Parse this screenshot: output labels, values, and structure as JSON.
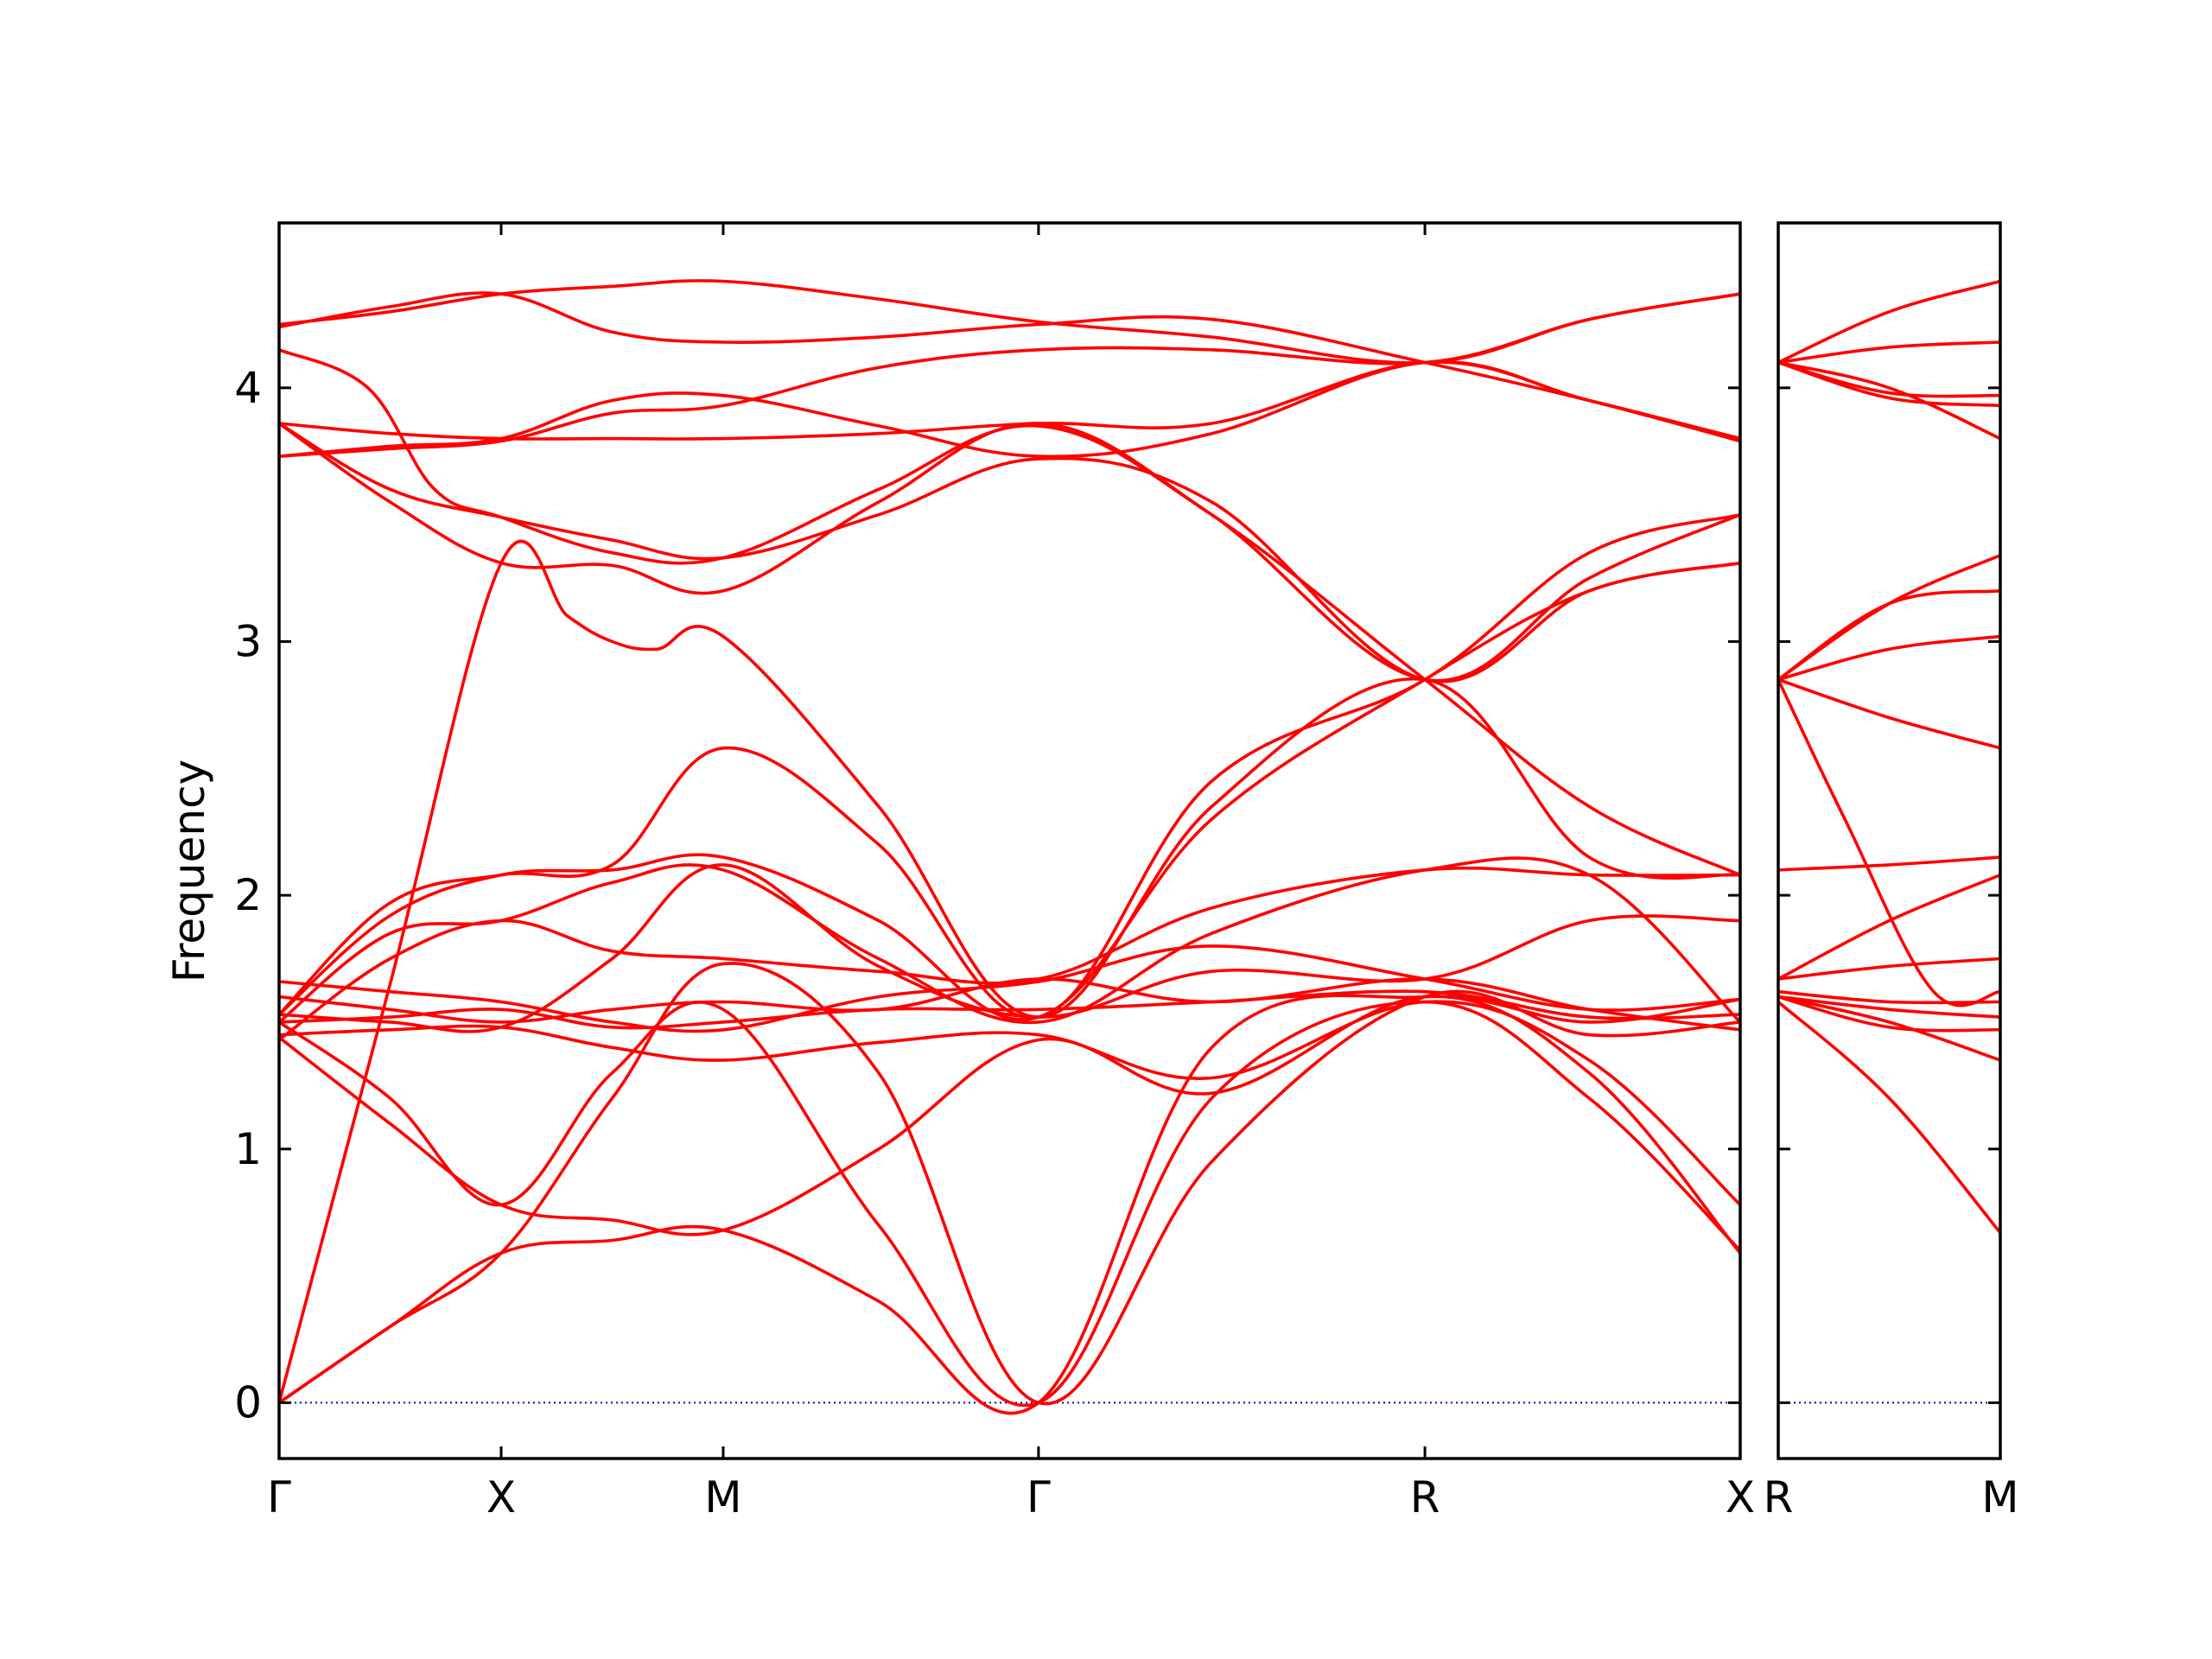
{
  "chart_data": {
    "type": "line",
    "ylabel": "Frequency",
    "ylim": [
      -0.22,
      4.65
    ],
    "yticks": [
      0,
      1,
      2,
      3,
      4
    ],
    "grid": false,
    "legend": "none",
    "line_color": "#ff0000",
    "zero_line_color": "#0000aa",
    "panels": [
      {
        "name": "main",
        "x_range": [
          0,
          3.29
        ],
        "ticks": [
          {
            "x": 0,
            "label": "Γ"
          },
          {
            "x": 0.5,
            "label": "X"
          },
          {
            "x": 1.0,
            "label": "M"
          },
          {
            "x": 1.71,
            "label": "Γ"
          },
          {
            "x": 2.58,
            "label": "R"
          },
          {
            "x": 3.29,
            "label": "X"
          }
        ],
        "series": [
          {
            "x": [
              0,
              0.25,
              0.5,
              0.75,
              1.0,
              1.35,
              1.71,
              2.1,
              2.58,
              2.95,
              3.29
            ],
            "y": [
              4.25,
              4.3,
              4.37,
              4.4,
              4.42,
              4.35,
              4.26,
              4.2,
              4.1,
              4.27,
              4.37
            ]
          },
          {
            "x": [
              0,
              0.25,
              0.5,
              0.75,
              1.0,
              1.35,
              1.71,
              2.1,
              2.58,
              2.95,
              3.29
            ],
            "y": [
              4.24,
              4.32,
              4.37,
              4.22,
              4.18,
              4.2,
              4.25,
              4.27,
              4.1,
              3.95,
              3.8
            ]
          },
          {
            "x": [
              0,
              0.2,
              0.35,
              0.5,
              0.75,
              1.0,
              1.35,
              1.71,
              2.1,
              2.58,
              2.95,
              3.29
            ],
            "y": [
              4.15,
              4.0,
              3.6,
              3.49,
              3.35,
              3.33,
              3.6,
              3.85,
              3.5,
              2.85,
              2.35,
              2.08
            ]
          },
          {
            "x": [
              0,
              0.25,
              0.5,
              0.75,
              1.0,
              1.35,
              1.71,
              2.1,
              2.58,
              2.95,
              3.29
            ],
            "y": [
              3.86,
              3.82,
              3.8,
              3.8,
              3.8,
              3.82,
              3.86,
              3.86,
              4.1,
              3.95,
              3.79
            ]
          },
          {
            "x": [
              0,
              0.25,
              0.5,
              0.75,
              1.0,
              1.35,
              1.71,
              2.1,
              2.58,
              2.95,
              3.29
            ],
            "y": [
              3.73,
              3.77,
              3.8,
              3.95,
              3.97,
              3.85,
              3.73,
              3.82,
              4.1,
              3.95,
              3.8
            ]
          },
          {
            "x": [
              0,
              0.25,
              0.5,
              0.75,
              1.0,
              1.35,
              1.71,
              2.1,
              2.58,
              2.95,
              3.29
            ],
            "y": [
              3.73,
              3.76,
              3.79,
              3.9,
              3.93,
              4.08,
              4.15,
              4.15,
              4.1,
              4.27,
              4.37
            ]
          },
          {
            "x": [
              0,
              0.25,
              0.5,
              0.75,
              1.0,
              1.35,
              1.71,
              2.1,
              2.58,
              2.95,
              3.29
            ],
            "y": [
              3.86,
              3.6,
              3.49,
              3.4,
              3.33,
              3.5,
              3.72,
              3.55,
              2.85,
              3.2,
              3.31
            ]
          },
          {
            "x": [
              0,
              0.25,
              0.5,
              0.75,
              1.0,
              1.35,
              1.71,
              2.1,
              2.58,
              2.95,
              3.29
            ],
            "y": [
              3.86,
              3.55,
              3.31,
              3.3,
              3.2,
              3.55,
              3.86,
              3.5,
              2.85,
              3.25,
              3.5
            ]
          },
          {
            "x": [
              0,
              0.25,
              0.5,
              0.65,
              0.75,
              0.85,
              1.0,
              1.35,
              1.71,
              2.1,
              2.58,
              2.95,
              3.29
            ],
            "y": [
              0,
              1.65,
              3.31,
              3.1,
              3.0,
              2.97,
              3.02,
              2.35,
              1.52,
              2.35,
              2.85,
              2.15,
              2.08
            ]
          },
          {
            "x": [
              0,
              0.25,
              0.5,
              0.75,
              1.0,
              1.35,
              1.71,
              2.1,
              2.58,
              2.95,
              3.29
            ],
            "y": [
              1.53,
              1.97,
              2.08,
              2.12,
              2.58,
              2.2,
              1.52,
              2.45,
              2.85,
              3.35,
              3.5
            ]
          },
          {
            "x": [
              0,
              0.25,
              0.5,
              0.75,
              1.0,
              1.35,
              1.71,
              2.1,
              2.58,
              2.95,
              3.29
            ],
            "y": [
              1.53,
              1.92,
              2.08,
              2.1,
              2.15,
              1.9,
              1.52,
              2.3,
              2.85,
              3.2,
              3.31
            ]
          },
          {
            "x": [
              0,
              0.25,
              0.5,
              0.75,
              1.0,
              1.35,
              1.71,
              2.1,
              2.58,
              2.95,
              3.29
            ],
            "y": [
              1.43,
              1.75,
              1.9,
              1.78,
              1.75,
              1.7,
              1.67,
              1.95,
              2.1,
              2.08,
              2.08
            ]
          },
          {
            "x": [
              0,
              0.25,
              0.5,
              0.75,
              1.0,
              1.35,
              1.71,
              2.1,
              2.58,
              2.95,
              3.29
            ],
            "y": [
              1.5,
              1.85,
              1.9,
              2.05,
              2.1,
              1.75,
              1.5,
              1.85,
              2.1,
              2.08,
              1.5
            ]
          },
          {
            "x": [
              0,
              0.25,
              0.5,
              0.75,
              1.0,
              1.35,
              1.71,
              2.1,
              2.58,
              2.95,
              3.29
            ],
            "y": [
              1.53,
              1.5,
              1.48,
              1.75,
              2.12,
              1.72,
              1.52,
              1.7,
              1.67,
              1.9,
              1.9
            ]
          },
          {
            "x": [
              0,
              0.25,
              0.5,
              0.75,
              1.0,
              1.35,
              1.71,
              2.1,
              2.58,
              2.95,
              3.29
            ],
            "y": [
              1.66,
              1.62,
              1.58,
              1.5,
              1.47,
              1.6,
              1.66,
              1.8,
              1.67,
              1.55,
              1.59
            ]
          },
          {
            "x": [
              0,
              0.25,
              0.5,
              0.75,
              1.0,
              1.35,
              1.71,
              2.1,
              2.58,
              2.95,
              3.29
            ],
            "y": [
              1.6,
              1.55,
              1.5,
              1.55,
              1.58,
              1.55,
              1.67,
              1.58,
              1.67,
              1.55,
              1.47
            ]
          },
          {
            "x": [
              0,
              0.25,
              0.5,
              0.75,
              1.0,
              1.35,
              1.71,
              2.1,
              2.58,
              2.95,
              3.29
            ],
            "y": [
              1.5,
              1.52,
              1.55,
              1.48,
              1.5,
              1.55,
              1.55,
              1.58,
              1.62,
              1.52,
              1.53
            ]
          },
          {
            "x": [
              0,
              0.25,
              0.5,
              0.75,
              1.0,
              1.35,
              1.71,
              2.1,
              2.58,
              2.95,
              3.29
            ],
            "y": [
              1.45,
              1.47,
              1.48,
              1.4,
              1.35,
              1.42,
              1.45,
              1.28,
              1.58,
              1.35,
              0.78
            ]
          },
          {
            "x": [
              0,
              0.25,
              0.5,
              0.75,
              1.0,
              1.35,
              1.71,
              2.1,
              2.58,
              2.95,
              3.29
            ],
            "y": [
              1.44,
              1.1,
              0.78,
              0.72,
              0.68,
              1.0,
              1.43,
              1.22,
              1.6,
              1.3,
              0.59
            ]
          },
          {
            "x": [
              0,
              0.25,
              0.5,
              0.75,
              1.0,
              1.35,
              1.71,
              2.1,
              2.58,
              2.95,
              3.29
            ],
            "y": [
              0,
              0.3,
              0.59,
              1.2,
              1.73,
              1.3,
              0,
              0.95,
              1.6,
              1.45,
              1.5
            ]
          },
          {
            "x": [
              0,
              0.25,
              0.5,
              0.75,
              1.0,
              1.35,
              1.71,
              2.1,
              2.58,
              2.95,
              3.29
            ],
            "y": [
              0,
              0.3,
              0.59,
              0.64,
              0.68,
              0.4,
              0,
              1.4,
              1.6,
              1.5,
              1.59
            ]
          },
          {
            "x": [
              0,
              0.25,
              0.5,
              0.75,
              1.0,
              1.35,
              1.71,
              2.1,
              2.58,
              2.95,
              3.29
            ],
            "y": [
              1.5,
              1.2,
              0.78,
              1.3,
              1.55,
              0.7,
              0,
              1.2,
              1.58,
              1.2,
              0.6
            ]
          }
        ]
      },
      {
        "name": "side",
        "x_range": [
          0,
          0.5
        ],
        "ticks": [
          {
            "x": 0,
            "label": "R"
          },
          {
            "x": 0.5,
            "label": "M"
          }
        ],
        "series": [
          {
            "x": [
              0,
              0.25,
              0.5
            ],
            "y": [
              4.1,
              4.3,
              4.42
            ]
          },
          {
            "x": [
              0,
              0.25,
              0.5
            ],
            "y": [
              4.1,
              4.16,
              4.18
            ]
          },
          {
            "x": [
              0,
              0.25,
              0.5
            ],
            "y": [
              4.1,
              3.98,
              3.97
            ]
          },
          {
            "x": [
              0,
              0.25,
              0.5
            ],
            "y": [
              4.1,
              3.96,
              3.93
            ]
          },
          {
            "x": [
              0,
              0.25,
              0.5
            ],
            "y": [
              4.1,
              4.0,
              3.8
            ]
          },
          {
            "x": [
              0,
              0.25,
              0.5
            ],
            "y": [
              2.85,
              3.15,
              3.34
            ]
          },
          {
            "x": [
              0,
              0.25,
              0.5
            ],
            "y": [
              2.85,
              3.15,
              3.2
            ]
          },
          {
            "x": [
              0,
              0.25,
              0.5
            ],
            "y": [
              2.85,
              2.97,
              3.02
            ]
          },
          {
            "x": [
              0,
              0.25,
              0.5
            ],
            "y": [
              2.85,
              2.7,
              2.58
            ]
          },
          {
            "x": [
              0,
              0.15,
              0.35,
              0.5
            ],
            "y": [
              2.85,
              2.3,
              1.62,
              1.62
            ]
          },
          {
            "x": [
              0,
              0.25,
              0.5
            ],
            "y": [
              2.1,
              2.12,
              2.15
            ]
          },
          {
            "x": [
              0,
              0.25,
              0.5
            ],
            "y": [
              1.67,
              1.72,
              1.75
            ]
          },
          {
            "x": [
              0,
              0.25,
              0.5
            ],
            "y": [
              1.67,
              1.9,
              2.08
            ]
          },
          {
            "x": [
              0,
              0.25,
              0.5
            ],
            "y": [
              1.62,
              1.58,
              1.58
            ]
          },
          {
            "x": [
              0,
              0.25,
              0.5
            ],
            "y": [
              1.6,
              1.55,
              1.52
            ]
          },
          {
            "x": [
              0,
              0.25,
              0.5
            ],
            "y": [
              1.6,
              1.48,
              1.47
            ]
          },
          {
            "x": [
              0,
              0.25,
              0.5
            ],
            "y": [
              1.6,
              1.5,
              1.35
            ]
          },
          {
            "x": [
              0,
              0.25,
              0.5
            ],
            "y": [
              1.58,
              1.2,
              0.67
            ]
          }
        ]
      }
    ]
  }
}
